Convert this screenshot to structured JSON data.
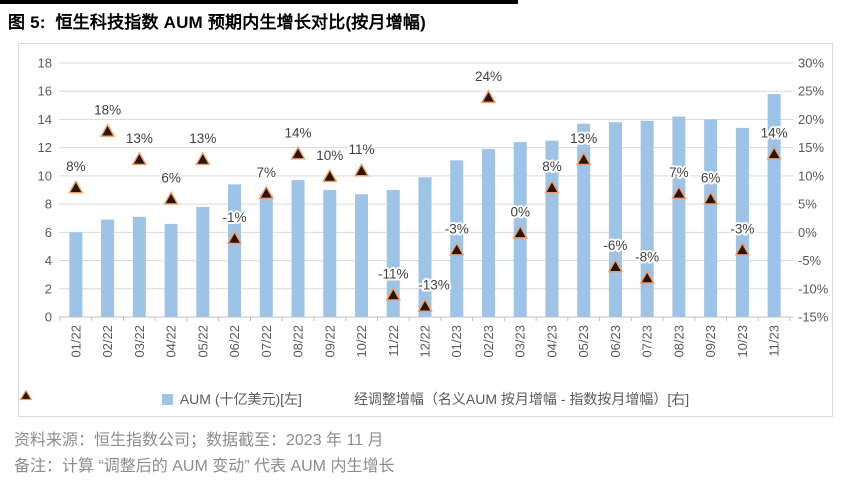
{
  "title": "图 5:  恒生科技指数 AUM 预期内生增长对比(按月增幅)",
  "footer": {
    "source": "资料来源：恒生指数公司；数据截至：2023 年 11 月",
    "note": "备注：计算 “调整后的 AUM 变动” 代表 AUM 内生增长"
  },
  "colors": {
    "bar": "#9DC3E6",
    "marker_fill": "#2B1503",
    "marker_stroke": "#EF9E67",
    "grid": "#D9D9D9",
    "axis_line": "#BFBFBF",
    "axis_text": "#595959",
    "label_text": "#404040",
    "footer_text": "#8C8C8C"
  },
  "chart_data": {
    "type": "combo-bar-scatter",
    "categories": [
      "01/22",
      "02/22",
      "03/22",
      "04/22",
      "05/22",
      "06/22",
      "07/22",
      "08/22",
      "09/22",
      "10/22",
      "11/22",
      "12/22",
      "01/23",
      "02/23",
      "03/23",
      "04/23",
      "05/23",
      "06/23",
      "07/23",
      "08/23",
      "09/23",
      "10/23",
      "11/23"
    ],
    "series": [
      {
        "name": "AUM (十亿美元)[左]",
        "type": "bar",
        "axis": "left",
        "values": [
          6.0,
          6.9,
          7.1,
          6.6,
          7.8,
          9.4,
          8.7,
          9.7,
          9.0,
          8.7,
          9.0,
          9.9,
          11.1,
          11.9,
          12.4,
          12.5,
          13.7,
          13.8,
          13.9,
          14.2,
          14.0,
          13.4,
          15.8
        ]
      },
      {
        "name": "经调整增幅（名义AUM 按月增幅 - 指数按月增幅）[右]",
        "type": "scatter",
        "marker": "triangle",
        "axis": "right",
        "values": [
          8,
          18,
          13,
          6,
          13,
          -1,
          7,
          14,
          10,
          11,
          -11,
          -13,
          -3,
          24,
          0,
          8,
          13,
          -6,
          -8,
          7,
          6,
          -3,
          14
        ],
        "labels": [
          "8%",
          "18%",
          "13%",
          "6%",
          "13%",
          "-1%",
          "7%",
          "14%",
          "10%",
          "11%",
          "-11%",
          "-13%",
          "-3%",
          "24%",
          "0%",
          "8%",
          "13%",
          "-6%",
          "-8%",
          "7%",
          "6%",
          "-3%",
          "14%"
        ],
        "label_dx": {
          "11": 9
        }
      }
    ],
    "left_axis": {
      "min": 0,
      "max": 18,
      "step": 2,
      "unit": ""
    },
    "right_axis": {
      "min": -15,
      "max": 30,
      "step": 5,
      "unit": "%"
    },
    "grid": true,
    "legend_position": "bottom"
  }
}
